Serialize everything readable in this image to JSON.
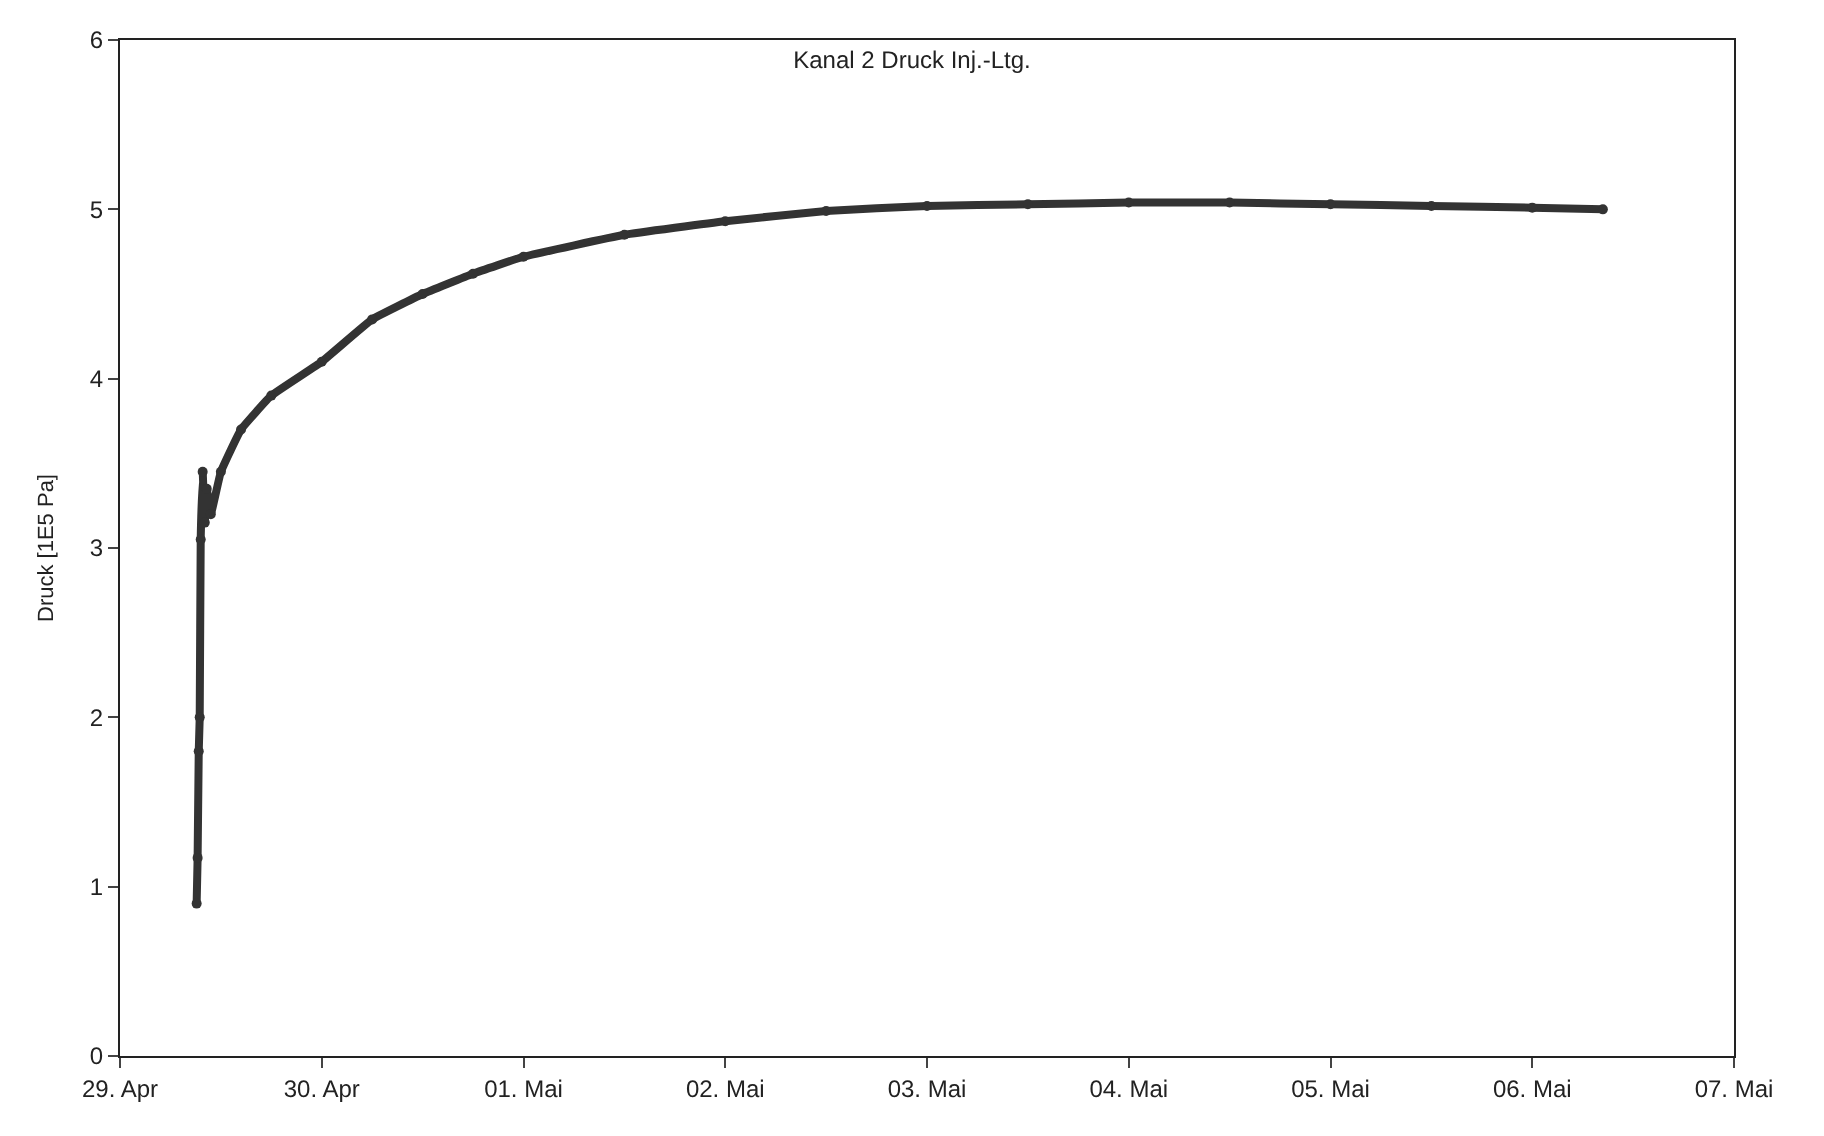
{
  "chart_data": {
    "type": "line",
    "title": "Kanal 2 Druck Inj.-Ltg.",
    "ylabel": "Druck [1E5 Pa]",
    "x": [
      "--04-29T09:07",
      "--04-29T09:14",
      "--04-29T09:22",
      "--04-29T09:29",
      "--04-29T09:36",
      "--04-29T09:50",
      "--04-29T10:05",
      "--04-29T10:19",
      "--04-29T10:48",
      "--04-29T12:00",
      "--04-29T14:24",
      "--04-29T18:00",
      "--04-30T00:00",
      "--04-30T06:00",
      "--04-30T12:00",
      "--04-30T18:00",
      "--05-01T00:00",
      "--05-01T12:00",
      "--05-02T00:00",
      "--05-02T12:00",
      "--05-03T00:00",
      "--05-03T12:00",
      "--05-04T00:00",
      "--05-04T12:00",
      "--05-05T00:00",
      "--05-05T12:00",
      "--05-06T00:00",
      "--05-06T08:24"
    ],
    "series": [
      {
        "color": "#333333",
        "values": [
          0.9,
          1.17,
          1.8,
          2.0,
          3.05,
          3.45,
          3.15,
          3.35,
          3.2,
          3.45,
          3.7,
          3.9,
          4.1,
          4.35,
          4.5,
          4.62,
          4.72,
          4.85,
          4.93,
          4.99,
          5.02,
          5.03,
          5.04,
          5.04,
          5.03,
          5.02,
          5.01,
          5.0
        ]
      }
    ],
    "ylim": [
      0,
      6
    ],
    "yticks": [
      0,
      1,
      2,
      3,
      4,
      5,
      6
    ],
    "xlim": [
      "--04-29",
      "--05-07"
    ],
    "xticks": [
      {
        "value": "--04-29",
        "label": "29. Apr"
      },
      {
        "value": "--04-30",
        "label": "30. Apr"
      },
      {
        "value": "--05-01",
        "label": "01. Mai"
      },
      {
        "value": "--05-02",
        "label": "02. Mai"
      },
      {
        "value": "--05-03",
        "label": "03. Mai"
      },
      {
        "value": "--05-04",
        "label": "04. Mai"
      },
      {
        "value": "--05-05",
        "label": "05. Mai"
      },
      {
        "value": "--05-06",
        "label": "06. Mai"
      },
      {
        "value": "--05-07",
        "label": "07. Mai"
      }
    ],
    "marker": "circle",
    "line_style": "solid"
  }
}
